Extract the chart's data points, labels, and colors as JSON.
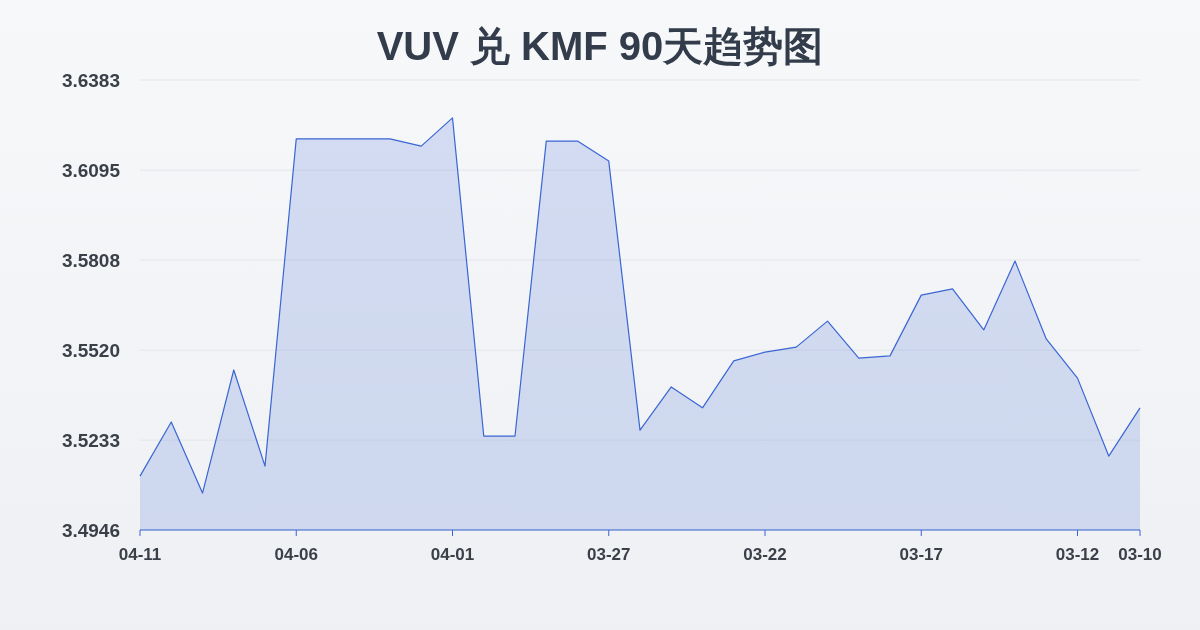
{
  "chart_data": {
    "type": "area",
    "title": "VUV 兑 KMF 90天趋势图",
    "categories": [
      "04-11",
      null,
      null,
      null,
      null,
      "04-06",
      null,
      null,
      null,
      null,
      "04-01",
      null,
      null,
      null,
      null,
      "03-27",
      null,
      null,
      null,
      null,
      "03-22",
      null,
      null,
      null,
      null,
      "03-17",
      null,
      null,
      null,
      null,
      "03-12",
      null,
      "03-10"
    ],
    "series": [
      {
        "color": "#3a66d4",
        "values": [
          3.5118,
          3.5291,
          3.5064,
          3.5457,
          3.515,
          3.6195,
          3.6195,
          3.6195,
          3.6195,
          3.6172,
          3.6262,
          3.5246,
          3.5246,
          3.6188,
          3.6188,
          3.6124,
          3.5265,
          3.5403,
          3.5336,
          3.5486,
          3.5514,
          3.553,
          3.5613,
          3.5495,
          3.5502,
          3.5696,
          3.5716,
          3.5585,
          3.5805,
          3.5556,
          3.5431,
          3.5182,
          3.5336
        ]
      }
    ],
    "ylim": [
      3.4946,
      3.6383
    ],
    "yticks": [
      3.4946,
      3.5233,
      {
        "value": 3.552,
        "label": "3.5520"
      },
      3.5808,
      3.6095,
      3.6383
    ],
    "grid": "y"
  }
}
